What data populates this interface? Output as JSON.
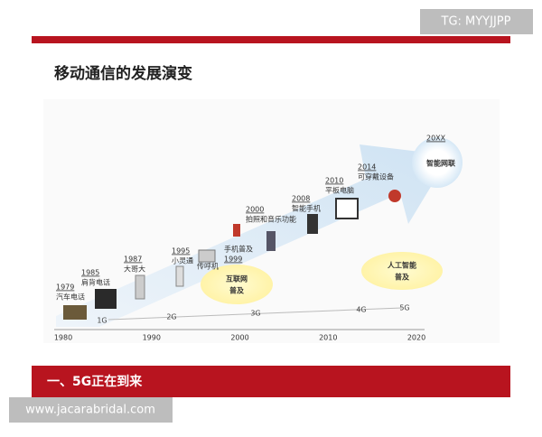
{
  "watermark_top": "TG: MYYJJPP",
  "title": "移动通信的发展演变",
  "milestones": [
    {
      "year": "1979",
      "label": "汽车电话"
    },
    {
      "year": "1985",
      "label": "肩背电话"
    },
    {
      "year": "1987",
      "label": "大哥大"
    },
    {
      "year": "1995",
      "label": "小灵通"
    },
    {
      "label": "传呼机"
    },
    {
      "label": "手机普及",
      "year": "1999"
    },
    {
      "year": "2000",
      "label": "拍照和音乐功能"
    },
    {
      "year": "2008",
      "label": "智能手机"
    },
    {
      "year": "2010",
      "label": "平板电脑"
    },
    {
      "year": "2014",
      "label": "可穿戴设备"
    },
    {
      "year": "20XX",
      "label": "智能网联"
    }
  ],
  "generations": [
    "1G",
    "2G",
    "3G",
    "4G",
    "5G"
  ],
  "axis_years": [
    "1980",
    "1990",
    "2000",
    "2010",
    "2020"
  ],
  "bubbles": [
    [
      "互联网",
      "普及"
    ],
    [
      "人工智能",
      "普及"
    ]
  ],
  "footer": "一、5G正在到来",
  "watermark_bottom": "www.jacarabridal.com"
}
